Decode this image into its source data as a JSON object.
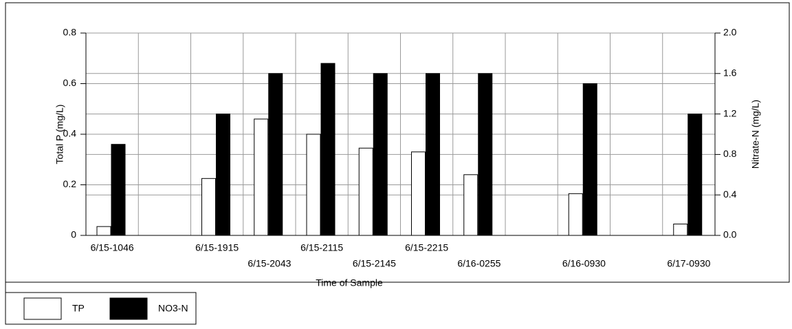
{
  "chart_data": {
    "type": "bar",
    "categories": [
      "6/15-1046",
      null,
      "6/15-1915",
      "6/15-2043",
      "6/15-2115",
      "6/15-2145",
      "6/15-2215",
      "6/16-0255",
      null,
      "6/16-0930",
      null,
      "6/17-0930"
    ],
    "series": [
      {
        "name": "TP",
        "color": "#ffffff",
        "values": [
          0.035,
          null,
          0.225,
          0.46,
          0.4,
          0.345,
          0.33,
          0.24,
          null,
          0.165,
          null,
          0.045
        ]
      },
      {
        "name": "NO3-N",
        "color": "#000000",
        "axis": "y2",
        "values": [
          0.9,
          null,
          1.2,
          1.6,
          1.7,
          1.6,
          1.6,
          1.6,
          null,
          1.5,
          null,
          1.2
        ]
      }
    ],
    "x_label": "Time of Sample",
    "y_label": "Total P (mg/L)",
    "y2_label": "Nitrate-N (mg/L)",
    "ylim": [
      0,
      0.8
    ],
    "yticks": [
      0,
      0.2,
      0.4,
      0.6,
      0.8
    ],
    "y2lim": [
      0,
      2.0
    ],
    "y2ticks": [
      {
        "value": 0,
        "label": "0.0"
      },
      0.4,
      0.8,
      1.2,
      1.6,
      {
        "value": 2.0,
        "label": "2.0"
      }
    ],
    "grid": true
  }
}
